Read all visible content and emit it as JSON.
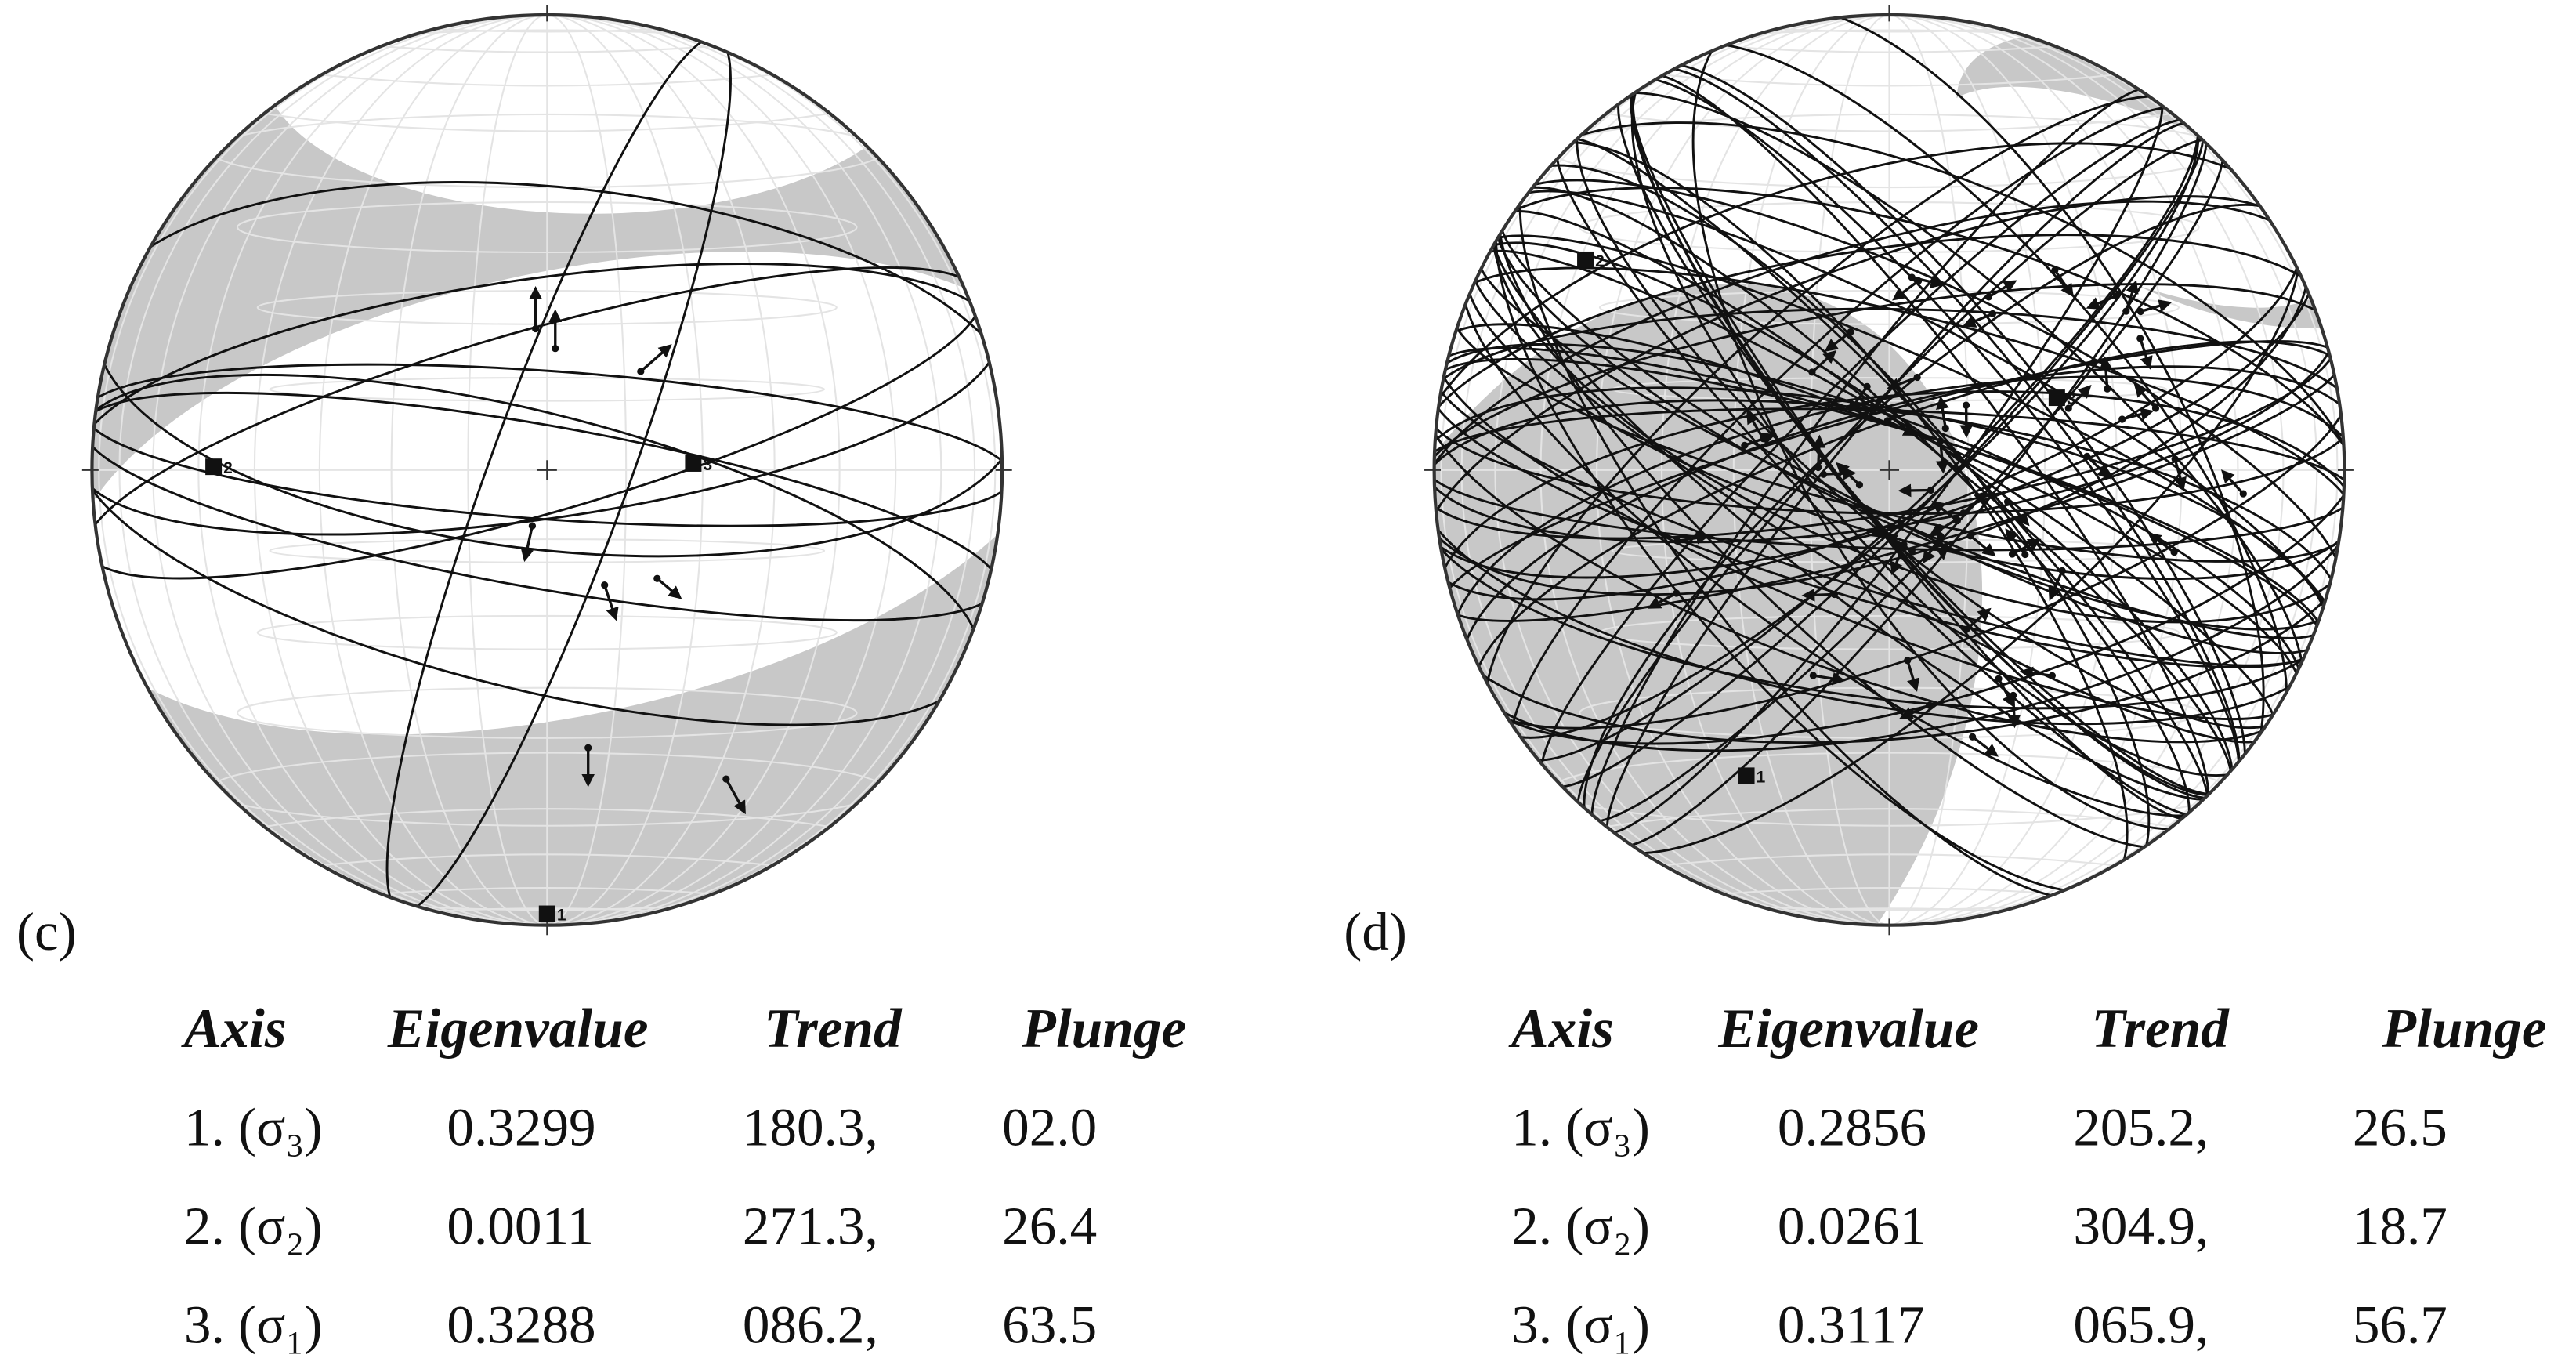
{
  "panels": [
    {
      "label": "(c)",
      "axis_markers": [
        "1",
        "2",
        "3"
      ],
      "table": {
        "header": [
          "Axis",
          "Eigenvalue",
          "Trend",
          "Plunge"
        ],
        "rows": [
          [
            "1. (σ₃)",
            "0.3299",
            "180.3,",
            "02.0"
          ],
          [
            "2. (σ₂)",
            "0.0011",
            "271.3,",
            "26.4"
          ],
          [
            "3. (σ₁)",
            "0.3288",
            "086.2,",
            "63.5"
          ]
        ]
      }
    },
    {
      "label": "(d)",
      "axis_markers": [
        "1",
        "2",
        "3"
      ],
      "table": {
        "header": [
          "Axis",
          "Eigenvalue",
          "Trend",
          "Plunge"
        ],
        "rows": [
          [
            "1. (σ₃)",
            "0.2856",
            "205.2,",
            "26.5"
          ],
          [
            "2. (σ₂)",
            "0.0261",
            "304.9,",
            "18.7"
          ],
          [
            "3. (σ₁)",
            "0.3117",
            "065.9,",
            "56.7"
          ]
        ]
      }
    }
  ]
}
